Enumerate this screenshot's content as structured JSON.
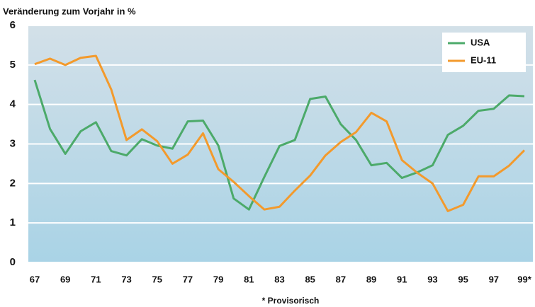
{
  "chart_data": {
    "type": "line",
    "title": "Veränderung zum Vorjahr in %",
    "footnote": "* Provisorisch",
    "categories": [
      "67",
      null,
      "69",
      null,
      "71",
      null,
      "73",
      null,
      "75",
      null,
      "77",
      null,
      "79",
      null,
      "81",
      null,
      "83",
      null,
      "85",
      null,
      "87",
      null,
      "89",
      null,
      "91",
      null,
      "93",
      null,
      "95",
      null,
      "97",
      null,
      "99*"
    ],
    "series": [
      {
        "name": "USA",
        "color": "#4caa6a",
        "values": [
          4.62,
          3.38,
          2.75,
          3.32,
          3.55,
          2.82,
          2.71,
          3.12,
          2.96,
          2.88,
          3.57,
          3.59,
          2.96,
          1.62,
          1.34,
          2.16,
          2.95,
          3.1,
          4.14,
          4.2,
          3.5,
          3.1,
          2.46,
          2.52,
          2.14,
          2.28,
          2.46,
          3.23,
          3.46,
          3.84,
          3.89,
          4.23,
          4.21
        ]
      },
      {
        "name": "EU-11",
        "color": "#f39a2c",
        "values": [
          5.02,
          5.16,
          5.0,
          5.18,
          5.23,
          4.38,
          3.1,
          3.37,
          3.07,
          2.5,
          2.73,
          3.27,
          2.36,
          2.04,
          1.68,
          1.34,
          1.41,
          1.82,
          2.2,
          2.71,
          3.05,
          3.3,
          3.79,
          3.57,
          2.59,
          2.27,
          2.0,
          1.3,
          1.46,
          2.18,
          2.18,
          2.45,
          2.84
        ]
      }
    ],
    "ylim": [
      0,
      6
    ],
    "yticks": [
      0,
      1,
      2,
      3,
      4,
      5,
      6
    ],
    "grid": true,
    "legend": "top-right"
  }
}
